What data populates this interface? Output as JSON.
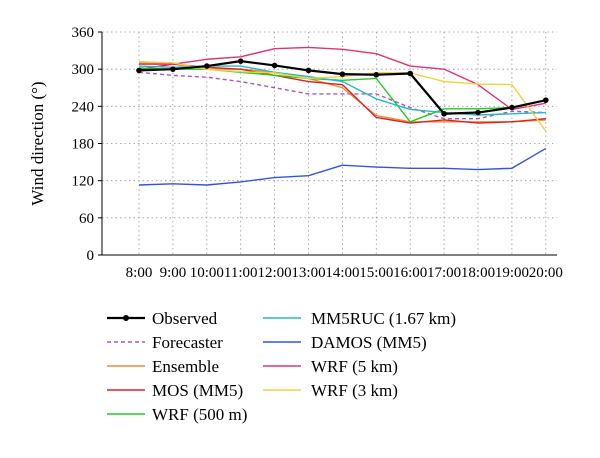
{
  "chart_data": {
    "type": "line",
    "xlabel": "",
    "ylabel": "Wind direction (°)",
    "ylim": [
      0,
      360
    ],
    "yticks": [
      0,
      60,
      120,
      180,
      240,
      300,
      360
    ],
    "categories": [
      "8:00",
      "9:00",
      "10:00",
      "11:00",
      "12:00",
      "13:00",
      "14:00",
      "15:00",
      "16:00",
      "17:00",
      "18:00",
      "19:00",
      "20:00"
    ],
    "grid": "dotted",
    "legend_position": "bottom",
    "series": [
      {
        "name": "Observed",
        "color": "#000000",
        "style": "solid-marker",
        "values": [
          298,
          300,
          305,
          313,
          306,
          298,
          292,
          291,
          293,
          228,
          230,
          238,
          250
        ]
      },
      {
        "name": "Forecaster",
        "color": "#a855c8",
        "style": "dashed",
        "values": [
          295,
          290,
          287,
          280,
          270,
          260,
          260,
          260,
          238,
          220,
          220,
          232,
          230
        ]
      },
      {
        "name": "Ensemble",
        "color": "#f08a3a",
        "style": "solid",
        "values": [
          310,
          310,
          300,
          300,
          295,
          285,
          270,
          225,
          215,
          215,
          215,
          215,
          218
        ]
      },
      {
        "name": "MOS (MM5)",
        "color": "#e02020",
        "style": "solid",
        "values": [
          300,
          308,
          303,
          300,
          290,
          280,
          275,
          222,
          213,
          218,
          213,
          215,
          220
        ]
      },
      {
        "name": "WRF (500 m)",
        "color": "#22cc22",
        "style": "solid",
        "values": [
          302,
          300,
          300,
          295,
          290,
          285,
          282,
          285,
          215,
          236,
          236,
          238,
          250
        ]
      },
      {
        "name": "MM5RUC (1.67 km)",
        "color": "#22bbcc",
        "style": "solid",
        "values": [
          305,
          303,
          305,
          305,
          295,
          288,
          280,
          252,
          235,
          230,
          226,
          228,
          230
        ]
      },
      {
        "name": "DAMOS (MM5)",
        "color": "#3355dd",
        "style": "solid",
        "values": [
          113,
          115,
          113,
          118,
          125,
          128,
          145,
          142,
          140,
          140,
          138,
          140,
          172
        ]
      },
      {
        "name": "WRF (5 km)",
        "color": "#dd3377",
        "style": "solid",
        "values": [
          308,
          308,
          316,
          320,
          333,
          335,
          332,
          325,
          305,
          300,
          275,
          235,
          245
        ]
      },
      {
        "name": "WRF (3 km)",
        "color": "#f2d23c",
        "style": "solid",
        "values": [
          312,
          310,
          300,
          296,
          294,
          285,
          288,
          294,
          294,
          280,
          276,
          275,
          200
        ]
      }
    ]
  }
}
